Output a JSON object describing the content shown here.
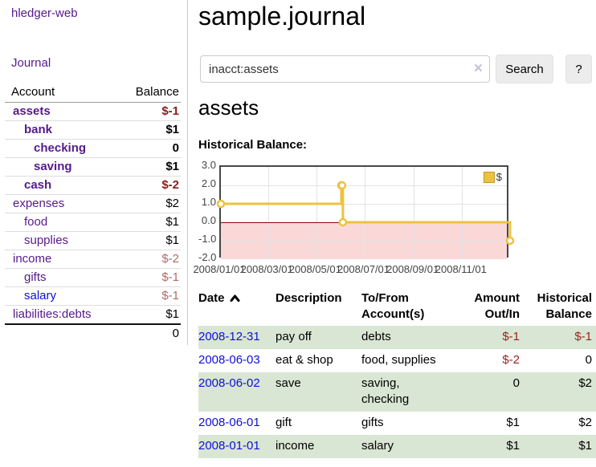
{
  "app": {
    "title": "hledger-web"
  },
  "nav": {
    "journal": "Journal"
  },
  "sidebar": {
    "table": {
      "account_header": "Account",
      "balance_header": "Balance",
      "accounts": [
        {
          "name": "assets",
          "depth": 1,
          "balance": "$-1",
          "bold": true,
          "neg": "strong"
        },
        {
          "name": "bank",
          "depth": 2,
          "balance": "$1",
          "bold": true,
          "neg": "none"
        },
        {
          "name": "checking",
          "depth": 3,
          "balance": "0",
          "bold": true,
          "neg": "none"
        },
        {
          "name": "saving",
          "depth": 3,
          "balance": "$1",
          "bold": true,
          "neg": "none"
        },
        {
          "name": "cash",
          "depth": 2,
          "balance": "$-2",
          "bold": true,
          "neg": "strong"
        },
        {
          "name": "expenses",
          "depth": 1,
          "balance": "$2",
          "bold": false,
          "neg": "none"
        },
        {
          "name": "food",
          "depth": 2,
          "balance": "$1",
          "bold": false,
          "neg": "none"
        },
        {
          "name": "supplies",
          "depth": 2,
          "balance": "$1",
          "bold": false,
          "neg": "none"
        },
        {
          "name": "income",
          "depth": 1,
          "balance": "$-2",
          "bold": false,
          "neg": "muted"
        },
        {
          "name": "gifts",
          "depth": 2,
          "balance": "$-1",
          "bold": false,
          "neg": "muted"
        },
        {
          "name": "salary",
          "depth": 2,
          "balance": "$-1",
          "bold": false,
          "neg": "muted",
          "link_color": "blue"
        },
        {
          "name": "liabilities:debts",
          "depth": 1,
          "balance": "$1",
          "bold": false,
          "neg": "none"
        }
      ],
      "total": "0"
    }
  },
  "header": {
    "title": "sample.journal"
  },
  "search": {
    "value": "inacct:assets",
    "clear_icon": "×",
    "button_label": "Search",
    "help_label": "?"
  },
  "account_page": {
    "heading": "assets",
    "chart_label": "Historical Balance:"
  },
  "chart_data": {
    "type": "line",
    "line_style": "step-after",
    "title": "Historical Balance",
    "ylim": [
      -2,
      3
    ],
    "xlim_days": [
      1,
      366
    ],
    "grid": true,
    "y_ticks": [
      "3.0",
      "2.0",
      "1.0",
      "0.0",
      "-1.0",
      "-2.0"
    ],
    "y_tick_values": [
      3,
      2,
      1,
      0,
      -1,
      -2
    ],
    "x_ticks": [
      {
        "label": "2008/01/01",
        "day": 1
      },
      {
        "label": "2008/03/01",
        "day": 61
      },
      {
        "label": "2008/05/01",
        "day": 122
      },
      {
        "label": "2008/07/01",
        "day": 183
      },
      {
        "label": "2008/09/01",
        "day": 245
      },
      {
        "label": "2008/11/01",
        "day": 306
      }
    ],
    "series": [
      {
        "name": "$",
        "color": "#edc240",
        "points": [
          {
            "date": "2008-01-01",
            "day": 1,
            "value": 1
          },
          {
            "date": "2008-06-01",
            "day": 153,
            "value": 2
          },
          {
            "date": "2008-06-02",
            "day": 154,
            "value": 2
          },
          {
            "date": "2008-06-03",
            "day": 155,
            "value": 0
          },
          {
            "date": "2008-12-31",
            "day": 366,
            "value": -1
          }
        ]
      }
    ],
    "legend": {
      "position": "top-right",
      "label": "$"
    },
    "negative_region_color": "#fbd8d8",
    "zero_line_color": "#8b0000"
  },
  "register": {
    "columns": [
      {
        "label": "Date",
        "sorted": "asc"
      },
      {
        "label": "Description"
      },
      {
        "label": "To/From Account(s)"
      },
      {
        "label": "Amount Out/In"
      },
      {
        "label": "Historical Balance"
      }
    ],
    "rows": [
      {
        "date": "2008-12-31",
        "description": "pay off",
        "accounts": "debts",
        "amount": "$-1",
        "balance": "$-1",
        "amount_neg": true,
        "balance_neg": true,
        "highlight": true
      },
      {
        "date": "2008-06-03",
        "description": "eat & shop",
        "accounts": "food, supplies",
        "amount": "$-2",
        "balance": "0",
        "amount_neg": true,
        "balance_neg": false,
        "highlight": false
      },
      {
        "date": "2008-06-02",
        "description": "save",
        "accounts": "saving, checking",
        "amount": "0",
        "balance": "$2",
        "amount_neg": false,
        "balance_neg": false,
        "highlight": true
      },
      {
        "date": "2008-06-01",
        "description": "gift",
        "accounts": "gifts",
        "amount": "$1",
        "balance": "$2",
        "amount_neg": false,
        "balance_neg": false,
        "highlight": false
      },
      {
        "date": "2008-01-01",
        "description": "income",
        "accounts": "salary",
        "amount": "$1",
        "balance": "$1",
        "amount_neg": false,
        "balance_neg": false,
        "highlight": true
      }
    ]
  },
  "colors": {
    "link_purple": "#551a8b",
    "link_blue": "#0f0fd8",
    "negative_strong": "#8b1c1c",
    "negative_muted": "#b36a6a",
    "negative_register": "#9a2321",
    "row_highlight_green": "#d9e6d3",
    "series_gold": "#edc240",
    "chart_negative_pink": "#fbd8d8",
    "chart_zero_line": "#8b0000"
  }
}
